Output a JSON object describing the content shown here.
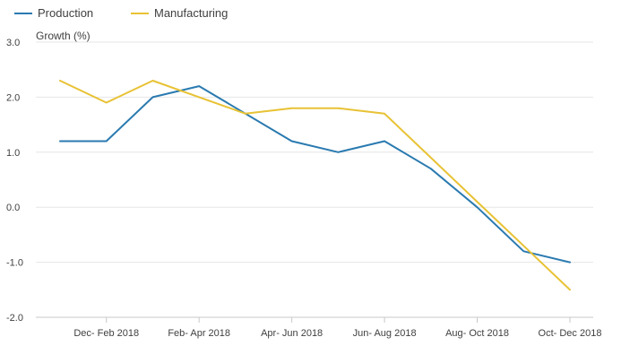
{
  "chart_data": {
    "type": "line",
    "ylabel": "Growth (%)",
    "xlabel": "",
    "ylim": [
      -2.0,
      3.0
    ],
    "y_ticks": [
      "3.0",
      "2.0",
      "1.0",
      "0.0",
      "-1.0",
      "-2.0"
    ],
    "y_tick_values": [
      3.0,
      2.0,
      1.0,
      0.0,
      -1.0,
      -2.0
    ],
    "x_tick_labels": [
      "Dec- Feb 2018",
      "Feb- Apr 2018",
      "Apr- Jun 2018",
      "Jun- Aug 2018",
      "Aug- Oct 2018",
      "Oct- Dec 2018"
    ],
    "x_tick_positions": [
      1,
      3,
      5,
      7,
      9,
      11
    ],
    "x_range": [
      0,
      11
    ],
    "grid": true,
    "legend_position": "top-left",
    "series": [
      {
        "name": "Production",
        "color": "#2a7ab0",
        "values": [
          1.2,
          1.2,
          2.0,
          2.2,
          1.7,
          1.2,
          1.0,
          1.2,
          0.7,
          0.0,
          -0.8,
          -1.0
        ]
      },
      {
        "name": "Manufacturing",
        "color": "#e8c234",
        "values": [
          2.3,
          1.9,
          2.3,
          2.0,
          1.7,
          1.8,
          1.8,
          1.7,
          0.9,
          0.1,
          -0.7,
          -1.5
        ]
      }
    ]
  }
}
